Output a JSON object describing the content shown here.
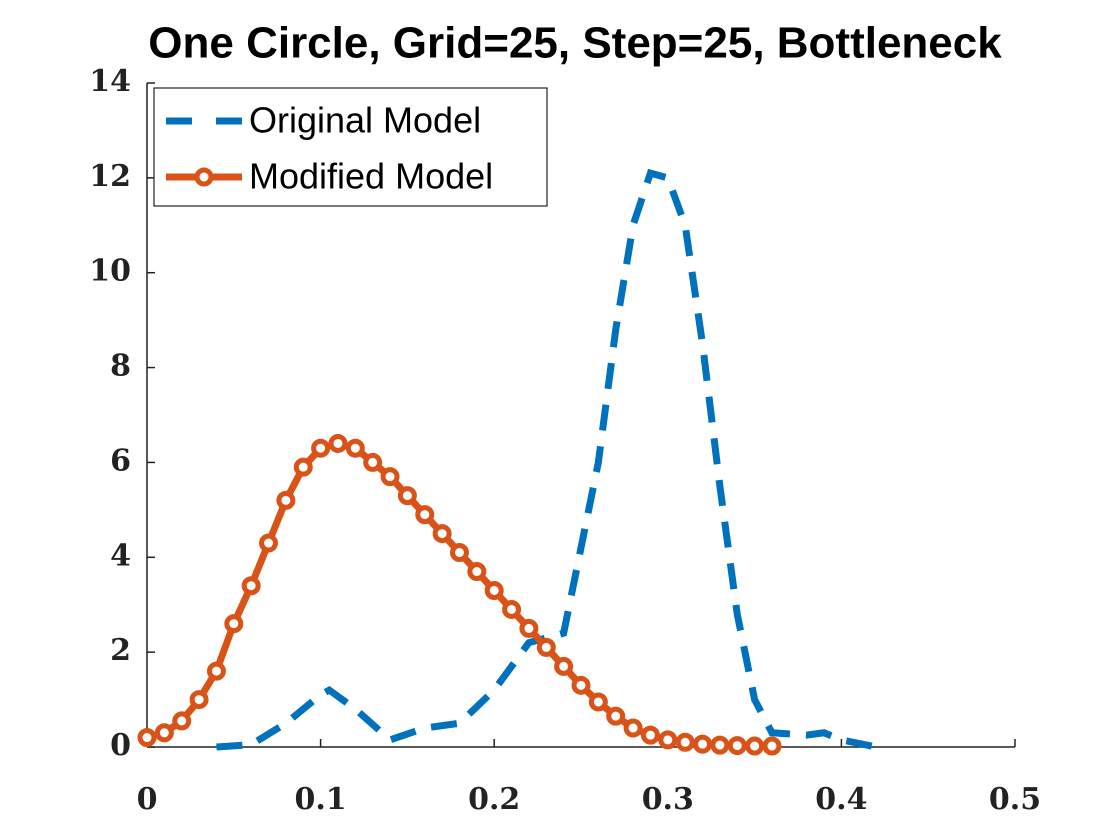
{
  "chart_data": {
    "type": "line",
    "title": "One Circle, Grid=25, Step=25, Bottleneck",
    "series": [
      {
        "name": "Original Model",
        "color": "#0072bd",
        "style": "dashed",
        "x": [
          0.04,
          0.06,
          0.08,
          0.1,
          0.105,
          0.12,
          0.14,
          0.16,
          0.18,
          0.2,
          0.22,
          0.24,
          0.26,
          0.27,
          0.28,
          0.29,
          0.3,
          0.31,
          0.32,
          0.33,
          0.34,
          0.35,
          0.36,
          0.38,
          0.39,
          0.4,
          0.42
        ],
        "values": [
          0,
          0.05,
          0.5,
          1.1,
          1.2,
          0.8,
          0.15,
          0.4,
          0.5,
          1.2,
          2.2,
          2.4,
          6,
          8.8,
          11,
          12.1,
          12,
          11,
          8.5,
          5.5,
          2.8,
          1,
          0.3,
          0.25,
          0.3,
          0.15,
          0
        ]
      },
      {
        "name": "Modified Model",
        "color": "#d95319",
        "style": "solid",
        "marker": "circle",
        "x": [
          0,
          0.01,
          0.02,
          0.03,
          0.04,
          0.05,
          0.06,
          0.07,
          0.08,
          0.09,
          0.1,
          0.11,
          0.12,
          0.13,
          0.14,
          0.15,
          0.16,
          0.17,
          0.18,
          0.19,
          0.2,
          0.21,
          0.22,
          0.23,
          0.24,
          0.25,
          0.26,
          0.27,
          0.28,
          0.29,
          0.3,
          0.31,
          0.32,
          0.33,
          0.34,
          0.35,
          0.36
        ],
        "values": [
          0.2,
          0.3,
          0.55,
          1,
          1.6,
          2.6,
          3.4,
          4.3,
          5.2,
          5.9,
          6.3,
          6.4,
          6.3,
          6,
          5.7,
          5.3,
          4.9,
          4.5,
          4.1,
          3.7,
          3.3,
          2.9,
          2.5,
          2.1,
          1.7,
          1.3,
          0.95,
          0.65,
          0.4,
          0.25,
          0.15,
          0.1,
          0.06,
          0.04,
          0.03,
          0.02,
          0.02
        ]
      }
    ],
    "xlim": [
      0,
      0.5
    ],
    "xticks": [
      0,
      0.1,
      0.2,
      0.3,
      0.4,
      0.5
    ],
    "ylim": [
      0,
      14
    ],
    "yticks": [
      0,
      2,
      4,
      6,
      8,
      10,
      12,
      14
    ],
    "legend": "upper left"
  }
}
